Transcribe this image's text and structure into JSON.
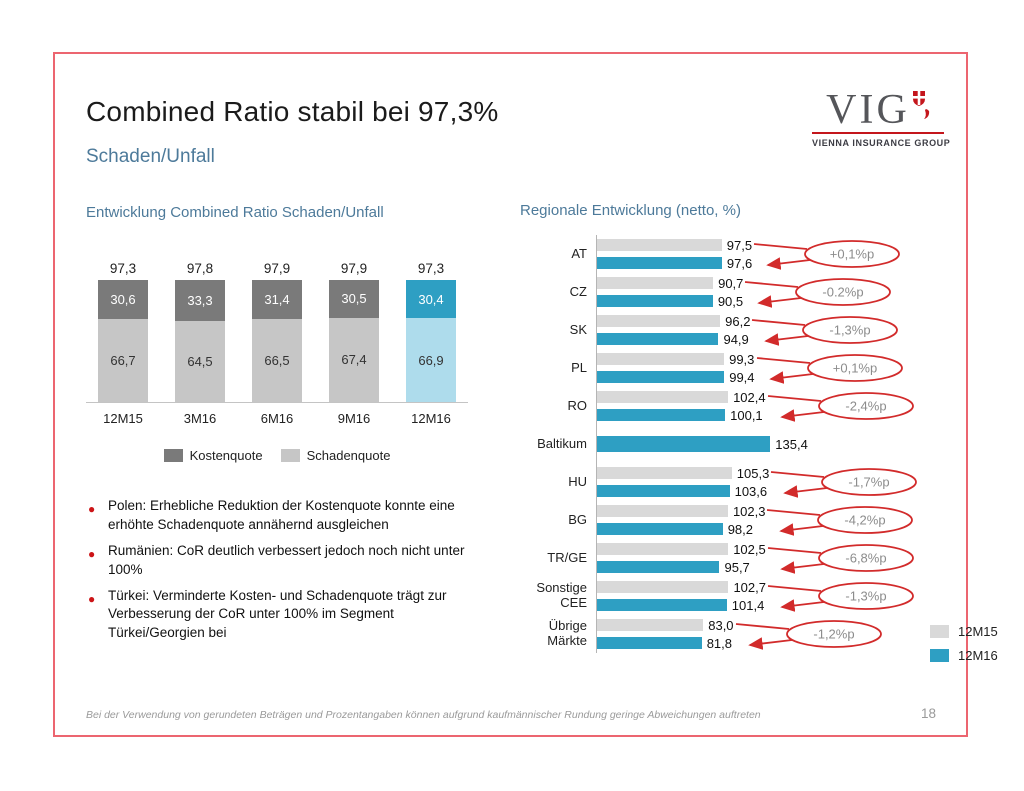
{
  "header": {
    "title": "Combined Ratio stabil bei 97,3%",
    "subtitle": "Schaden/Unfall"
  },
  "logo": {
    "text": "VIG",
    "tagline": "VIENNA INSURANCE GROUP",
    "brand_color": "#c4161c"
  },
  "chart_data": [
    {
      "type": "bar",
      "stacked": true,
      "title": "Entwicklung Combined Ratio Schaden/Unfall",
      "categories": [
        "12M15",
        "3M16",
        "6M16",
        "9M16",
        "12M16"
      ],
      "series": [
        {
          "name": "Kostenquote",
          "values": [
            30.6,
            33.3,
            31.4,
            30.5,
            30.4
          ],
          "color": "#7a7a7a",
          "highlight_color": "#2e9fc3"
        },
        {
          "name": "Schadenquote",
          "values": [
            66.7,
            64.5,
            66.5,
            67.4,
            66.9
          ],
          "color": "#c6c6c6",
          "highlight_color": "#aedcec"
        }
      ],
      "totals": [
        "97,3",
        "97,8",
        "97,9",
        "97,9",
        "97,3"
      ],
      "highlight_category": "12M16",
      "value_format": "comma-decimal",
      "ylim": [
        0,
        100
      ],
      "legend_position": "bottom"
    },
    {
      "type": "bar",
      "orientation": "horizontal",
      "title": "Regionale Entwicklung (netto, %)",
      "xlim": [
        0,
        140
      ],
      "annotation_color": "#d22b2b",
      "annotation_text_color": "#8c8c8c",
      "legend": [
        {
          "label": "12M15",
          "color": "#d9d9d9"
        },
        {
          "label": "12M16",
          "color": "#2e9fc3"
        }
      ],
      "rows": [
        {
          "label": "AT",
          "v15": 97.5,
          "v16": 97.6,
          "delta": "+0,1%p"
        },
        {
          "label": "CZ",
          "v15": 90.7,
          "v16": 90.5,
          "delta": "-0.2%p"
        },
        {
          "label": "SK",
          "v15": 96.2,
          "v16": 94.9,
          "delta": "-1,3%p"
        },
        {
          "label": "PL",
          "v15": 99.3,
          "v16": 99.4,
          "delta": "+0,1%p"
        },
        {
          "label": "RO",
          "v15": 102.4,
          "v16": 100.1,
          "delta": "-2,4%p"
        },
        {
          "label": "Baltikum",
          "v15": null,
          "v16": 135.4,
          "delta": null
        },
        {
          "label": "HU",
          "v15": 105.3,
          "v16": 103.6,
          "delta": "-1,7%p"
        },
        {
          "label": "BG",
          "v15": 102.3,
          "v16": 98.2,
          "delta": "-4,2%p"
        },
        {
          "label": "TR/GE",
          "v15": 102.5,
          "v16": 95.7,
          "delta": "-6,8%p"
        },
        {
          "label": "Sonstige CEE",
          "v15": 102.7,
          "v16": 101.4,
          "delta": "-1,3%p"
        },
        {
          "label": "Übrige Märkte",
          "v15": 83.0,
          "v16": 81.8,
          "delta": "-1,2%p"
        }
      ]
    }
  ],
  "bullets": [
    "Polen: Erhebliche Reduktion der Kostenquote konnte eine erhöhte Schadenquote annähernd ausgleichen",
    "Rumänien: CoR deutlich verbessert jedoch noch nicht unter 100%",
    "Türkei: Verminderte Kosten- und Schadenquote trägt zur Verbesserung der CoR unter 100% im Segment Türkei/Georgien bei"
  ],
  "footer": {
    "disclaimer": "Bei der Verwendung von gerundeten Beträgen und Prozentangaben können aufgrund kaufmännischer Rundung geringe Abweichungen auftreten",
    "page_number": "18"
  }
}
